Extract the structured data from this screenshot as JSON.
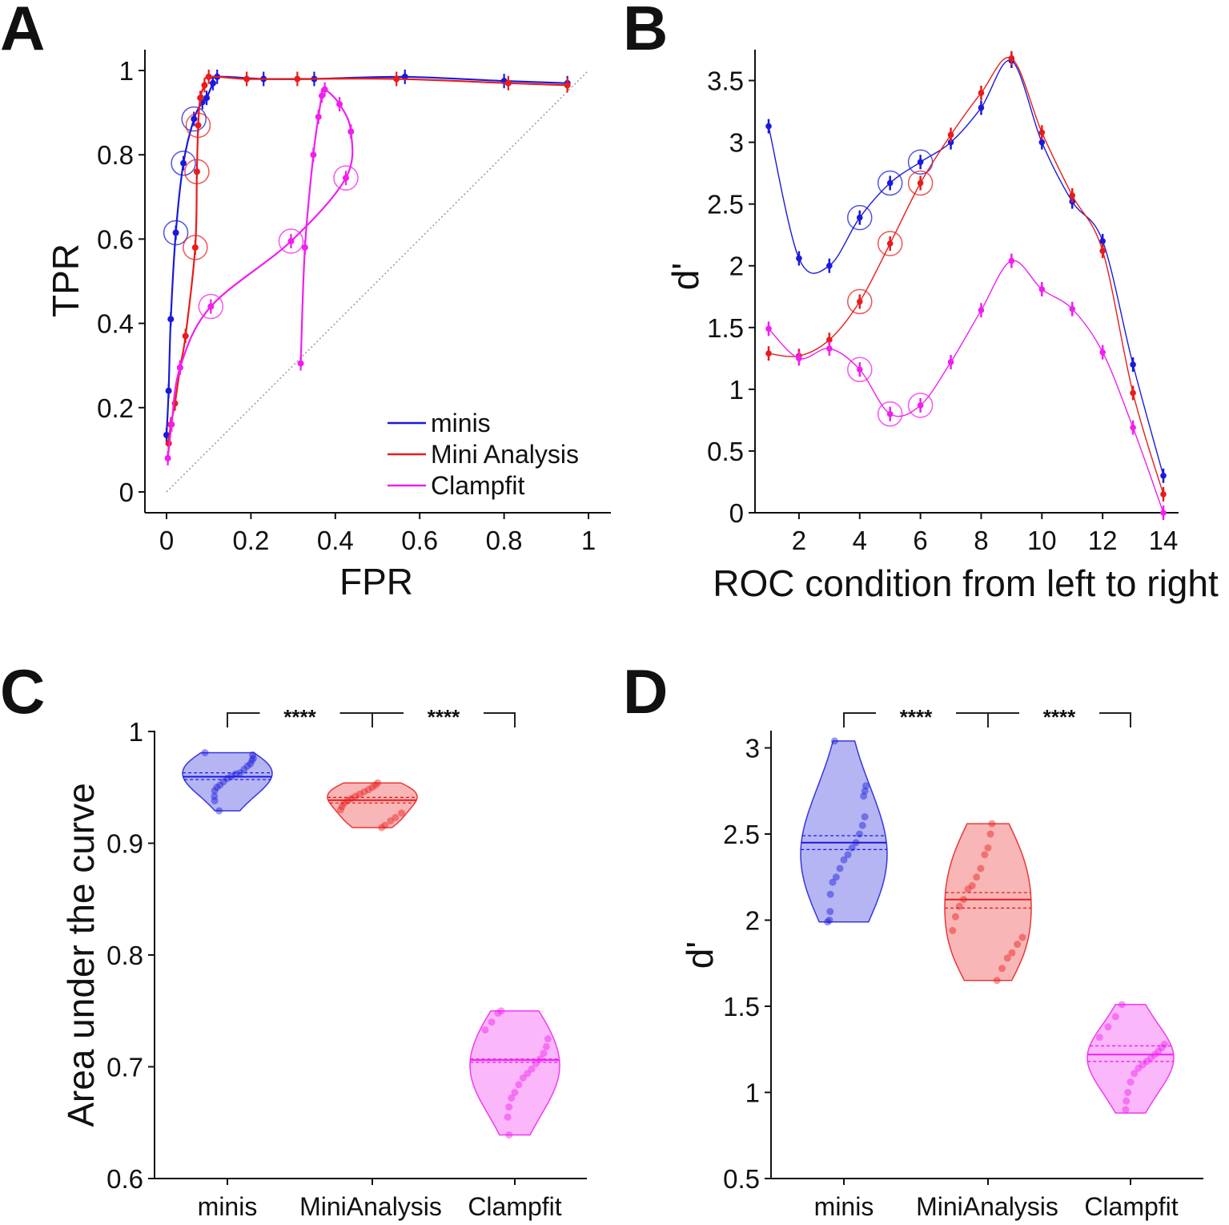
{
  "colors": {
    "minis": "#1a1adc",
    "mini_analysis": "#e81c1c",
    "clampfit": "#f01ff0",
    "axis": "#111111",
    "chance": "#999999"
  },
  "chart_data": [
    {
      "panel": "A",
      "type": "line",
      "xlabel": "FPR",
      "ylabel": "TPR",
      "xlim": [
        0,
        1
      ],
      "ylim": [
        0,
        1
      ],
      "xticks": [
        "0",
        "0.2",
        "0.4",
        "0.6",
        "0.8",
        "1"
      ],
      "yticks": [
        "0",
        "0.2",
        "0.4",
        "0.6",
        "0.8",
        "1"
      ],
      "legend": [
        "minis",
        "Mini Analysis",
        "Clampfit"
      ],
      "legend_position": "bottom-right",
      "chance_line": true,
      "series": [
        {
          "name": "minis",
          "x": [
            0.0,
            0.005,
            0.01,
            0.022,
            0.04,
            0.065,
            0.085,
            0.095,
            0.11,
            0.12,
            0.23,
            0.35,
            0.565,
            0.8,
            0.95
          ],
          "y": [
            0.135,
            0.24,
            0.41,
            0.615,
            0.78,
            0.885,
            0.925,
            0.935,
            0.97,
            0.985,
            0.98,
            0.98,
            0.985,
            0.975,
            0.97
          ],
          "circled": [
            3,
            4,
            5
          ]
        },
        {
          "name": "Mini Analysis",
          "x": [
            0.005,
            0.01,
            0.02,
            0.032,
            0.045,
            0.068,
            0.072,
            0.075,
            0.08,
            0.09,
            0.1,
            0.19,
            0.31,
            0.545,
            0.81,
            0.95
          ],
          "y": [
            0.115,
            0.16,
            0.21,
            0.295,
            0.37,
            0.58,
            0.76,
            0.87,
            0.935,
            0.965,
            0.985,
            0.98,
            0.98,
            0.98,
            0.97,
            0.965
          ],
          "circled": [
            5,
            6,
            7
          ]
        },
        {
          "name": "Clampfit",
          "x": [
            0.003,
            0.012,
            0.032,
            0.105,
            0.295,
            0.425,
            0.437,
            0.41,
            0.375,
            0.368,
            0.36,
            0.348,
            0.328,
            0.318
          ],
          "y": [
            0.08,
            0.16,
            0.295,
            0.44,
            0.595,
            0.745,
            0.855,
            0.92,
            0.955,
            0.94,
            0.89,
            0.8,
            0.58,
            0.305
          ],
          "circled": [
            3,
            4,
            5
          ]
        }
      ]
    },
    {
      "panel": "B",
      "type": "line",
      "xlabel": "ROC condition from left to right",
      "ylabel": "d'",
      "xlim": [
        0.5,
        14.5
      ],
      "ylim": [
        0,
        3.75
      ],
      "xticks": [
        "2",
        "4",
        "6",
        "8",
        "10",
        "12",
        "14"
      ],
      "yticks": [
        "0",
        "0.5",
        "1",
        "1.5",
        "2",
        "2.5",
        "3",
        "3.5"
      ],
      "x": [
        1,
        2,
        3,
        4,
        5,
        6,
        7,
        8,
        9,
        10,
        11,
        12,
        13,
        14
      ],
      "series": [
        {
          "name": "minis",
          "values": [
            3.13,
            2.06,
            2.0,
            2.39,
            2.67,
            2.84,
            3.0,
            3.28,
            3.66,
            3.0,
            2.52,
            2.2,
            1.2,
            0.3
          ],
          "circled": [
            4,
            5,
            6
          ]
        },
        {
          "name": "Mini Analysis",
          "values": [
            1.29,
            1.27,
            1.4,
            1.71,
            2.18,
            2.67,
            3.06,
            3.4,
            3.68,
            3.08,
            2.57,
            2.12,
            0.97,
            0.15
          ],
          "circled": [
            4,
            5,
            6
          ]
        },
        {
          "name": "Clampfit",
          "values": [
            1.49,
            1.25,
            1.33,
            1.16,
            0.8,
            0.87,
            1.22,
            1.64,
            2.04,
            1.81,
            1.65,
            1.3,
            0.69,
            0.0
          ],
          "circled": [
            4,
            5,
            6
          ]
        }
      ]
    },
    {
      "panel": "C",
      "type": "violin",
      "ylabel": "Area under the curve",
      "ylim": [
        0.6,
        1.0
      ],
      "yticks": [
        "0.6",
        "0.7",
        "0.8",
        "0.9",
        "1"
      ],
      "categories": [
        "minis",
        "MiniAnalysis",
        "Clampfit"
      ],
      "significance": [
        "****",
        "****"
      ],
      "series": [
        {
          "name": "minis",
          "median": 0.9595,
          "quartiles": [
            0.957,
            0.963
          ],
          "range": [
            0.929,
            0.981
          ],
          "points": [
            0.981,
            0.979,
            0.976,
            0.974,
            0.971,
            0.969,
            0.966,
            0.963,
            0.962,
            0.96,
            0.958,
            0.955,
            0.952,
            0.95,
            0.947,
            0.942,
            0.938,
            0.929
          ]
        },
        {
          "name": "MiniAnalysis",
          "median": 0.9385,
          "quartiles": [
            0.936,
            0.941
          ],
          "range": [
            0.914,
            0.954
          ],
          "points": [
            0.954,
            0.952,
            0.95,
            0.948,
            0.946,
            0.944,
            0.942,
            0.94,
            0.938,
            0.936,
            0.933,
            0.93,
            0.927,
            0.923,
            0.92,
            0.916,
            0.914
          ]
        },
        {
          "name": "Clampfit",
          "median": 0.706,
          "quartiles": [
            0.704,
            0.707
          ],
          "range": [
            0.639,
            0.75
          ],
          "points": [
            0.75,
            0.748,
            0.74,
            0.733,
            0.725,
            0.718,
            0.712,
            0.707,
            0.703,
            0.698,
            0.694,
            0.69,
            0.684,
            0.677,
            0.672,
            0.664,
            0.655,
            0.639
          ]
        }
      ]
    },
    {
      "panel": "D",
      "type": "violin",
      "ylabel": "d'",
      "ylim": [
        0.5,
        3.1
      ],
      "yticks": [
        "0.5",
        "1",
        "1.5",
        "2",
        "2.5",
        "3"
      ],
      "categories": [
        "minis",
        "MiniAnalysis",
        "Clampfit"
      ],
      "significance": [
        "****",
        "****"
      ],
      "series": [
        {
          "name": "minis",
          "median": 2.45,
          "quartiles": [
            2.41,
            2.49
          ],
          "range": [
            1.99,
            3.04
          ],
          "points": [
            3.04,
            2.78,
            2.75,
            2.72,
            2.6,
            2.55,
            2.5,
            2.45,
            2.42,
            2.38,
            2.35,
            2.3,
            2.25,
            2.22,
            2.15,
            2.05,
            2.0,
            1.99
          ]
        },
        {
          "name": "MiniAnalysis",
          "median": 2.12,
          "quartiles": [
            2.07,
            2.16
          ],
          "range": [
            1.65,
            2.56
          ],
          "points": [
            2.56,
            2.5,
            2.42,
            2.38,
            2.3,
            2.25,
            2.2,
            2.18,
            2.12,
            2.08,
            2.02,
            1.94,
            1.9,
            1.86,
            1.81,
            1.78,
            1.72,
            1.65
          ]
        },
        {
          "name": "Clampfit",
          "median": 1.22,
          "quartiles": [
            1.18,
            1.27
          ],
          "range": [
            0.88,
            1.51
          ],
          "points": [
            1.51,
            1.44,
            1.38,
            1.32,
            1.28,
            1.26,
            1.24,
            1.22,
            1.2,
            1.18,
            1.16,
            1.14,
            1.11,
            1.06,
            1.0,
            0.95,
            0.9
          ]
        }
      ]
    }
  ]
}
